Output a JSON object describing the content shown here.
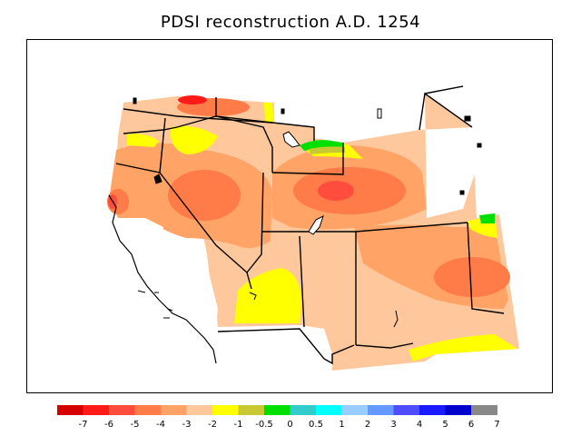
{
  "title": "PDSI reconstruction A.D. 1254",
  "colorbar": {
    "colors": [
      "#d50000",
      "#ff1a1a",
      "#ff4d3d",
      "#ff7b47",
      "#ffa366",
      "#ffc89c",
      "#ffff00",
      "#c8c832",
      "#00e000",
      "#33cccc",
      "#00ffff",
      "#99ccff",
      "#6699ff",
      "#4d4dff",
      "#1a1aff",
      "#0000cc",
      "#888888"
    ],
    "labels": [
      "-7",
      "-6",
      "-5",
      "-4",
      "-3",
      "-2",
      "-1",
      "-0.5",
      "0",
      "0.5",
      "1",
      "2",
      "3",
      "4",
      "5",
      "6",
      "7"
    ]
  }
}
